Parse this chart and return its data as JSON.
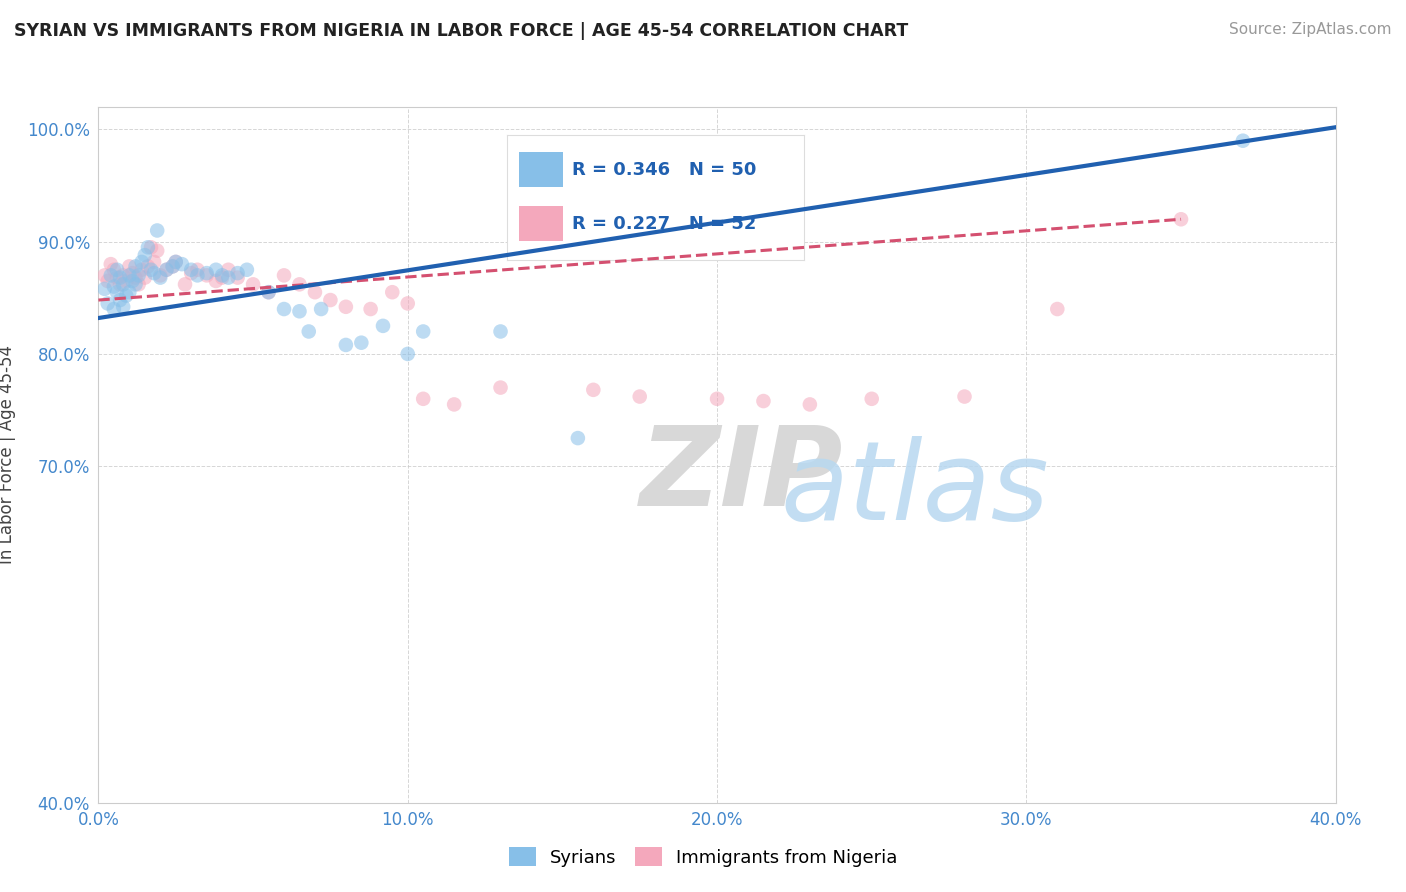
{
  "title": "SYRIAN VS IMMIGRANTS FROM NIGERIA IN LABOR FORCE | AGE 45-54 CORRELATION CHART",
  "source": "Source: ZipAtlas.com",
  "ylabel": "In Labor Force | Age 45-54",
  "xmin": 0.0,
  "xmax": 0.4,
  "ymin": 0.4,
  "ymax": 1.02,
  "xticks": [
    0.0,
    0.1,
    0.2,
    0.3,
    0.4
  ],
  "yticks": [
    0.4,
    0.7,
    0.8,
    0.9,
    1.0
  ],
  "ytick_labels": [
    "40.0%",
    "70.0%",
    "80.0%",
    "90.0%",
    "100.0%"
  ],
  "xtick_labels": [
    "0.0%",
    "10.0%",
    "20.0%",
    "30.0%",
    "40.0%"
  ],
  "blue_color": "#87bfe8",
  "pink_color": "#f4a8bc",
  "trend_blue": "#2060b0",
  "trend_pink": "#d45070",
  "legend_R1": "R = 0.346",
  "legend_N1": "N = 50",
  "legend_R2": "R = 0.227",
  "legend_N2": "N = 52",
  "legend_label1": "Syrians",
  "legend_label2": "Immigrants from Nigeria",
  "blue_trend_x0": 0.0,
  "blue_trend_y0": 0.832,
  "blue_trend_x1": 0.4,
  "blue_trend_y1": 1.002,
  "pink_trend_x0": 0.0,
  "pink_trend_y0": 0.848,
  "pink_trend_x1": 0.35,
  "pink_trend_y1": 0.92,
  "blue_x": [
    0.002,
    0.003,
    0.004,
    0.005,
    0.005,
    0.006,
    0.006,
    0.007,
    0.007,
    0.008,
    0.008,
    0.009,
    0.01,
    0.01,
    0.011,
    0.012,
    0.012,
    0.013,
    0.014,
    0.015,
    0.016,
    0.017,
    0.018,
    0.019,
    0.02,
    0.022,
    0.024,
    0.025,
    0.027,
    0.03,
    0.032,
    0.035,
    0.038,
    0.04,
    0.042,
    0.045,
    0.048,
    0.055,
    0.06,
    0.065,
    0.068,
    0.072,
    0.08,
    0.085,
    0.092,
    0.1,
    0.105,
    0.13,
    0.155,
    0.37
  ],
  "blue_y": [
    0.858,
    0.845,
    0.87,
    0.86,
    0.84,
    0.875,
    0.855,
    0.868,
    0.848,
    0.862,
    0.842,
    0.852,
    0.87,
    0.855,
    0.865,
    0.878,
    0.862,
    0.87,
    0.882,
    0.888,
    0.895,
    0.875,
    0.872,
    0.91,
    0.868,
    0.875,
    0.878,
    0.882,
    0.88,
    0.875,
    0.87,
    0.872,
    0.875,
    0.87,
    0.868,
    0.872,
    0.875,
    0.855,
    0.84,
    0.838,
    0.82,
    0.84,
    0.808,
    0.81,
    0.825,
    0.8,
    0.82,
    0.82,
    0.725,
    0.99
  ],
  "pink_x": [
    0.002,
    0.003,
    0.004,
    0.005,
    0.006,
    0.007,
    0.008,
    0.009,
    0.01,
    0.011,
    0.012,
    0.013,
    0.014,
    0.015,
    0.016,
    0.017,
    0.018,
    0.019,
    0.02,
    0.022,
    0.024,
    0.025,
    0.028,
    0.03,
    0.032,
    0.035,
    0.038,
    0.04,
    0.042,
    0.045,
    0.05,
    0.055,
    0.06,
    0.065,
    0.07,
    0.075,
    0.08,
    0.088,
    0.095,
    0.1,
    0.105,
    0.115,
    0.13,
    0.16,
    0.175,
    0.2,
    0.215,
    0.23,
    0.25,
    0.28,
    0.31,
    0.35
  ],
  "pink_y": [
    0.87,
    0.865,
    0.88,
    0.875,
    0.868,
    0.862,
    0.87,
    0.865,
    0.878,
    0.872,
    0.868,
    0.862,
    0.875,
    0.868,
    0.878,
    0.895,
    0.882,
    0.892,
    0.87,
    0.875,
    0.878,
    0.882,
    0.862,
    0.872,
    0.875,
    0.87,
    0.865,
    0.868,
    0.875,
    0.868,
    0.862,
    0.855,
    0.87,
    0.862,
    0.855,
    0.848,
    0.842,
    0.84,
    0.855,
    0.845,
    0.76,
    0.755,
    0.77,
    0.768,
    0.762,
    0.76,
    0.758,
    0.755,
    0.76,
    0.762,
    0.84,
    0.92
  ],
  "dot_size": 110,
  "dot_alpha": 0.55,
  "bg_color": "#ffffff",
  "grid_color": "#cccccc"
}
